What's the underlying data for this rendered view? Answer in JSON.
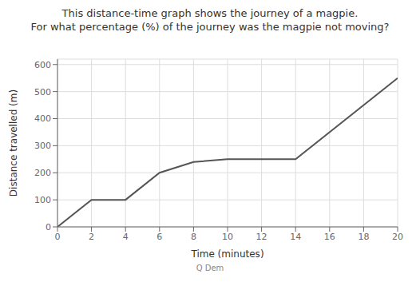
{
  "chart_data": {
    "type": "line",
    "title": "This distance-time graph shows the journey of a magpie.",
    "subtitle": "For what percentage (%) of the journey was the magpie not moving?",
    "x_label": "Time (minutes)",
    "y_label": "Distance travelled (m)",
    "x": [
      0,
      2,
      4,
      6,
      8,
      10,
      14,
      20
    ],
    "values": [
      0,
      100,
      100,
      200,
      240,
      250,
      250,
      550
    ],
    "color": "#555555",
    "xlim": [
      0,
      20
    ],
    "ylim": [
      0,
      620
    ],
    "xticks": [
      0,
      2,
      4,
      6,
      8,
      10,
      12,
      14,
      16,
      18,
      20
    ],
    "yticks": [
      0,
      100,
      200,
      300,
      400,
      500,
      600
    ],
    "grid": true,
    "annotations": [
      "Q Dem"
    ]
  }
}
